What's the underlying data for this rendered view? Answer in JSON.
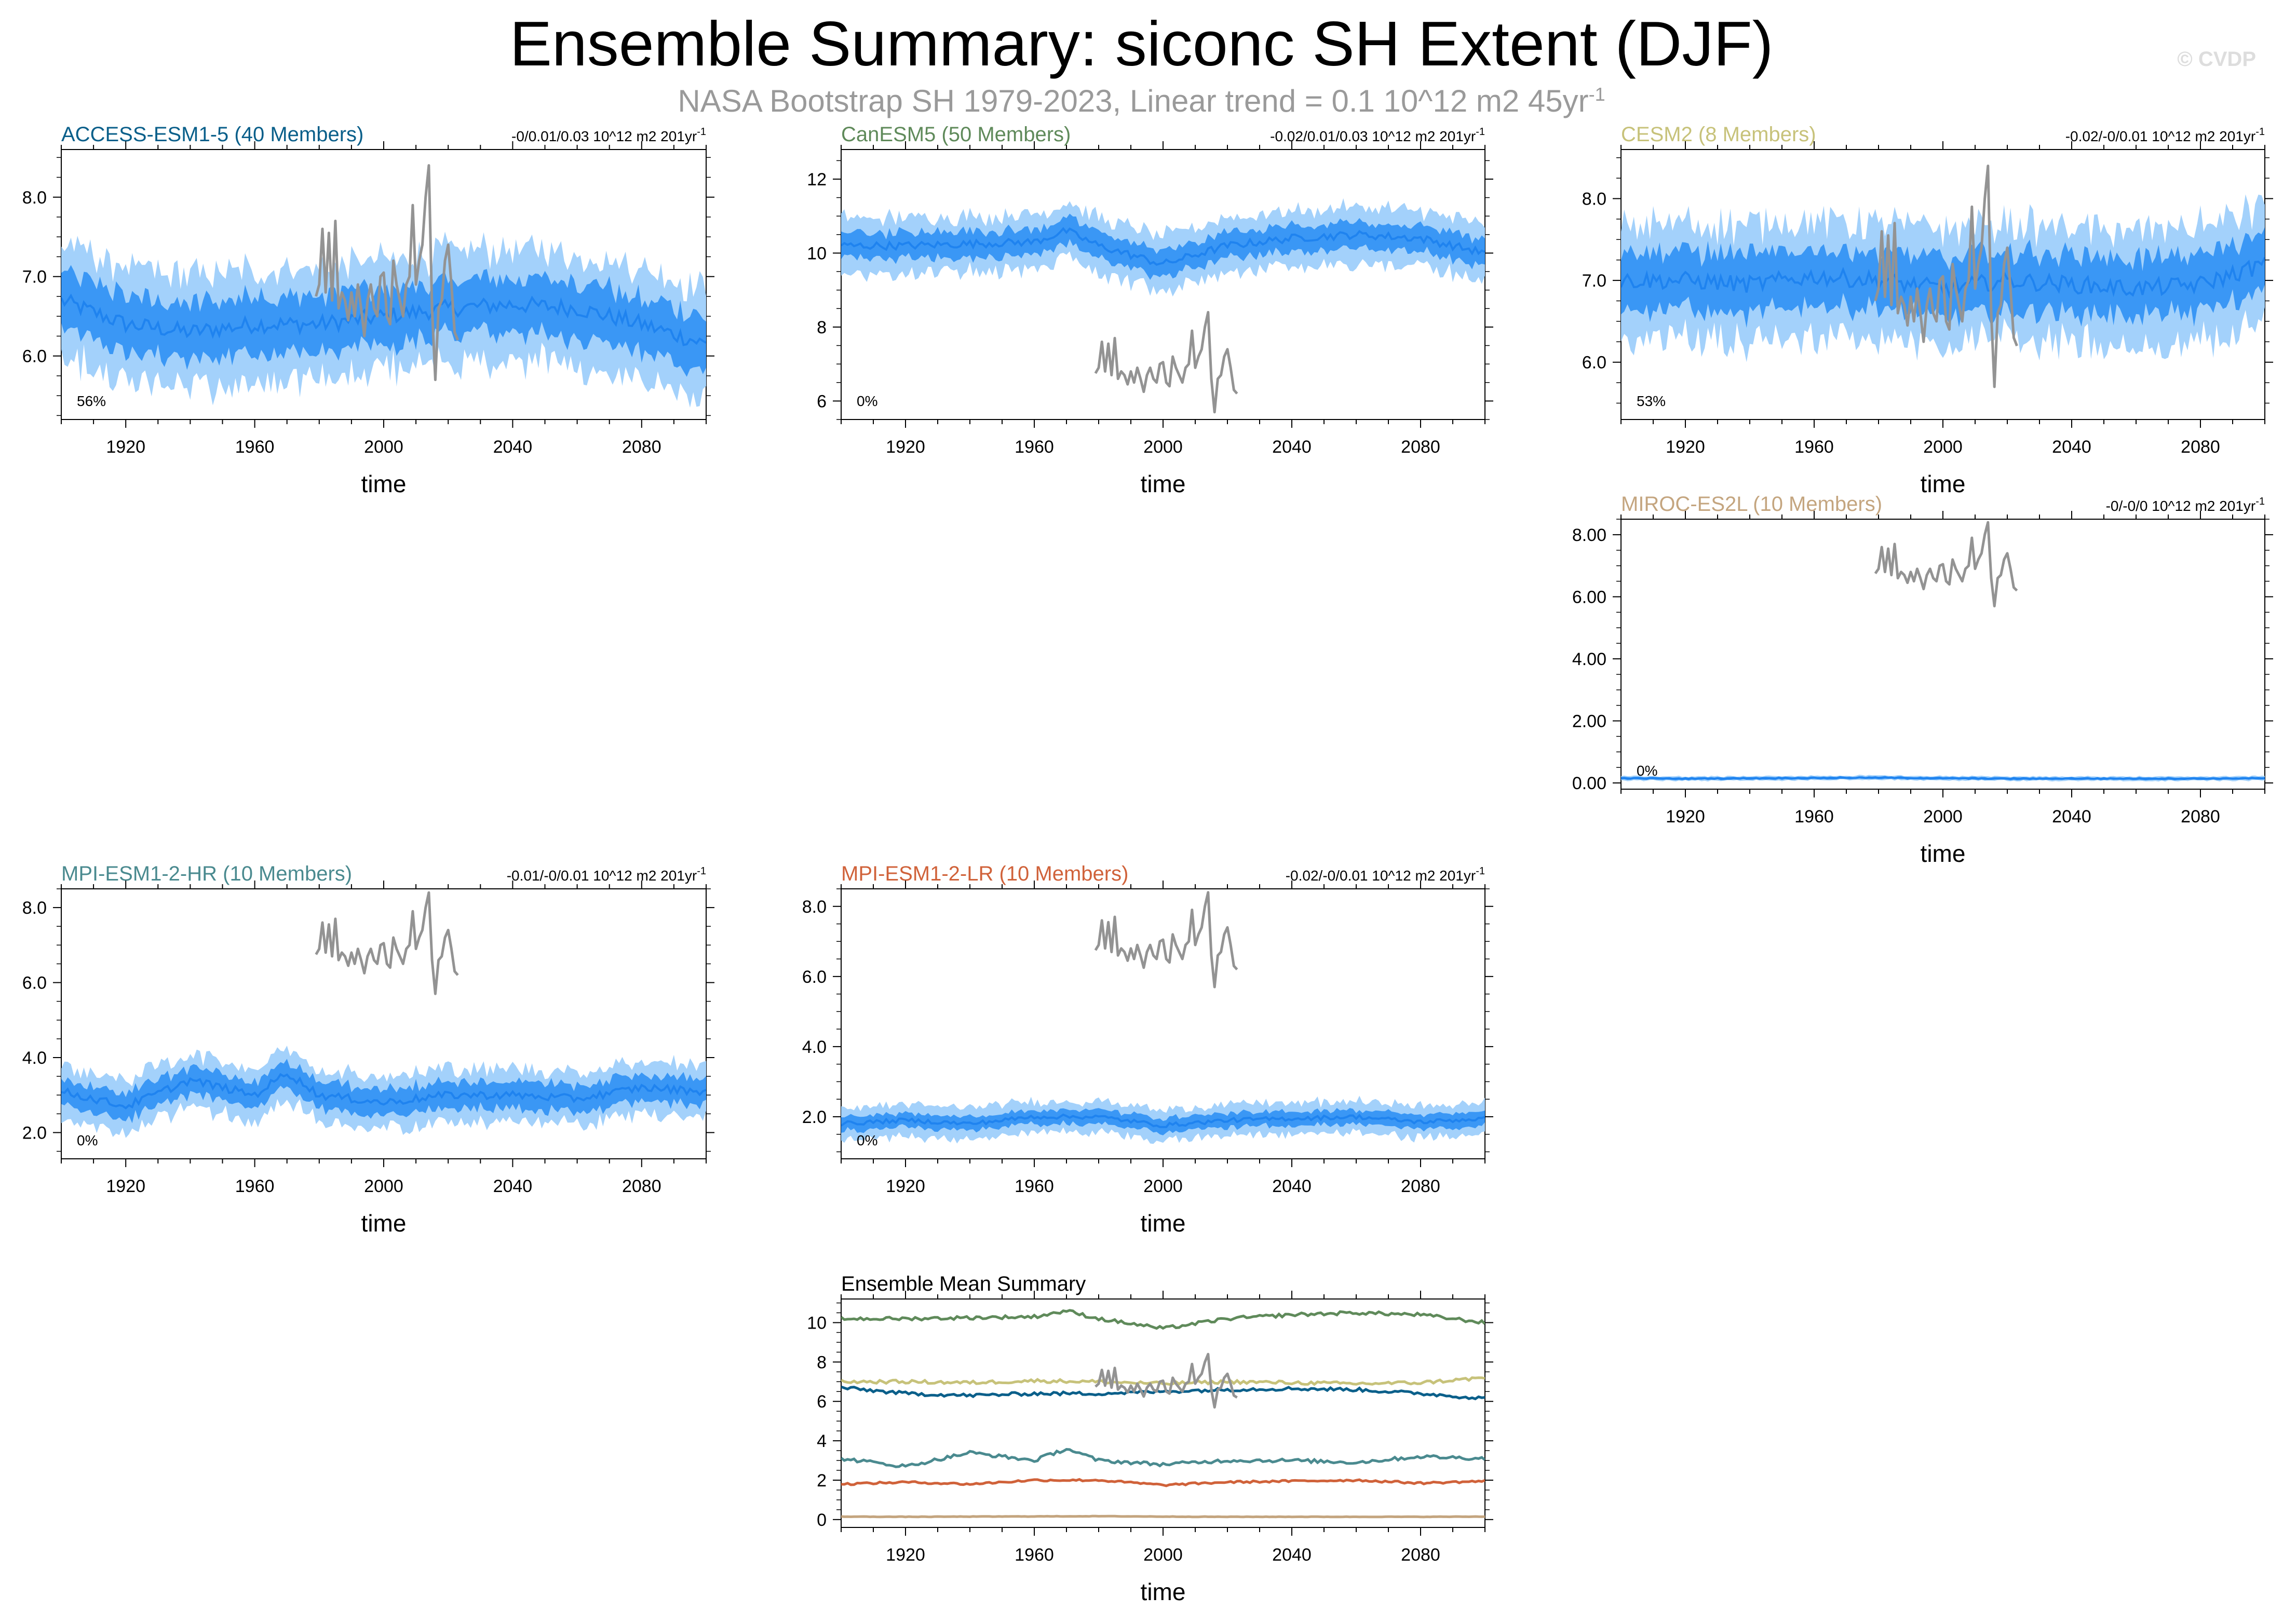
{
  "title": "Ensemble Summary: siconc SH Extent (DJF)",
  "subtitle": {
    "text": "NASA Bootstrap SH 1979-2023, Linear trend = 0.1 10^12 m2 45yr",
    "sup": "-1"
  },
  "copyright": "© CVDP",
  "colors": {
    "spread_outer": "#a3d1fb",
    "spread_inner": "#3a97f5",
    "ensemble_mean": "#1f83ef",
    "observations": "#939393"
  },
  "chart_data": [
    {
      "id": "access",
      "type": "area",
      "title": "ACCESS-ESM1-5 (40 Members)",
      "title_color": "#0a5f8a",
      "trend": "-0/0.01/0.03 10^12 m2 201yr",
      "trend_sup": "-1",
      "percent_label": "56%",
      "xlabel": "time",
      "xlim": [
        1900,
        2100
      ],
      "xticks": [
        "1920",
        "1960",
        "2000",
        "2040",
        "2080"
      ],
      "ylim": [
        5.2,
        8.6
      ],
      "yticks": [
        "6.0",
        "7.0",
        "8.0"
      ],
      "mean": {
        "years": [
          1900,
          1920,
          1940,
          1960,
          1980,
          2000,
          2020,
          2040,
          2060,
          2080,
          2100
        ],
        "values": [
          6.7,
          6.4,
          6.3,
          6.4,
          6.4,
          6.5,
          6.6,
          6.65,
          6.6,
          6.4,
          6.15
        ]
      },
      "spread_inner": 0.35,
      "spread_outer": 0.7,
      "obs_offset": 0
    },
    {
      "id": "canesm",
      "type": "area",
      "title": "CanESM5 (50 Members)",
      "title_color": "#5f8a5a",
      "trend": "-0.02/0.01/0.03 10^12 m2 201yr",
      "trend_sup": "-1",
      "percent_label": "0%",
      "xlabel": "time",
      "xlim": [
        1900,
        2100
      ],
      "xticks": [
        "1920",
        "1960",
        "2000",
        "2040",
        "2080"
      ],
      "ylim": [
        5.5,
        12.8
      ],
      "yticks": [
        "6",
        "8",
        "10",
        "12"
      ],
      "mean": {
        "years": [
          1900,
          1920,
          1940,
          1960,
          1970,
          1980,
          2000,
          2020,
          2040,
          2060,
          2080,
          2100
        ],
        "values": [
          10.2,
          10.2,
          10.25,
          10.3,
          10.6,
          10.2,
          9.7,
          10.2,
          10.4,
          10.5,
          10.4,
          10.0
        ]
      },
      "spread_inner": 0.35,
      "spread_outer": 0.75,
      "obs_offset": 0
    },
    {
      "id": "cesm2",
      "type": "area",
      "title": "CESM2 (8 Members)",
      "title_color": "#c7c27a",
      "trend": "-0.02/-0/0.01 10^12 m2 201yr",
      "trend_sup": "-1",
      "percent_label": "53%",
      "xlabel": "time",
      "xlim": [
        1900,
        2100
      ],
      "xticks": [
        "1920",
        "1960",
        "2000",
        "2040",
        "2080"
      ],
      "ylim": [
        5.3,
        8.6
      ],
      "yticks": [
        "6.0",
        "7.0",
        "8.0"
      ],
      "mean": {
        "years": [
          1900,
          1920,
          1940,
          1960,
          1980,
          2000,
          2020,
          2040,
          2060,
          2080,
          2100
        ],
        "values": [
          7.0,
          7.0,
          6.95,
          7.05,
          7.0,
          6.9,
          7.0,
          6.95,
          6.9,
          6.95,
          7.2
        ]
      },
      "spread_inner": 0.35,
      "spread_outer": 0.7,
      "obs_offset": 0
    },
    {
      "id": "miroc",
      "type": "area",
      "title": "MIROC-ES2L (10 Members)",
      "title_color": "#c4a57f",
      "trend": "-0/-0/0 10^12 m2 201yr",
      "trend_sup": "-1",
      "percent_label": "0%",
      "xlabel": "time",
      "xlim": [
        1900,
        2100
      ],
      "xticks": [
        "1920",
        "1960",
        "2000",
        "2040",
        "2080"
      ],
      "ylim": [
        -0.2,
        8.5
      ],
      "yticks": [
        "0.00",
        "2.00",
        "4.00",
        "6.00",
        "8.00"
      ],
      "mean": {
        "years": [
          1900,
          1920,
          1940,
          1960,
          1980,
          2000,
          2020,
          2040,
          2060,
          2080,
          2100
        ],
        "values": [
          0.15,
          0.14,
          0.15,
          0.16,
          0.17,
          0.15,
          0.14,
          0.14,
          0.14,
          0.14,
          0.15
        ]
      },
      "spread_inner": 0.04,
      "spread_outer": 0.07,
      "obs_offset": 0
    },
    {
      "id": "mpihr",
      "type": "area",
      "title": "MPI-ESM1-2-HR (10 Members)",
      "title_color": "#4a8a8f",
      "trend": "-0.01/-0/0.01 10^12 m2 201yr",
      "trend_sup": "-1",
      "percent_label": "0%",
      "xlabel": "time",
      "xlim": [
        1900,
        2100
      ],
      "xticks": [
        "1920",
        "1960",
        "2000",
        "2040",
        "2080"
      ],
      "ylim": [
        1.3,
        8.5
      ],
      "yticks": [
        "2.0",
        "4.0",
        "6.0",
        "8.0"
      ],
      "mean": {
        "years": [
          1900,
          1910,
          1920,
          1940,
          1960,
          1970,
          1980,
          2000,
          2020,
          2040,
          2060,
          2080,
          2100
        ],
        "values": [
          3.1,
          2.9,
          2.7,
          3.4,
          3.0,
          3.6,
          3.0,
          2.8,
          3.0,
          3.0,
          2.9,
          3.2,
          3.1
        ]
      },
      "spread_inner": 0.35,
      "spread_outer": 0.7,
      "obs_offset": 0
    },
    {
      "id": "mpilr",
      "type": "area",
      "title": "MPI-ESM1-2-LR (10 Members)",
      "title_color": "#d0623a",
      "trend": "-0.02/-0/0.01 10^12 m2 201yr",
      "trend_sup": "-1",
      "percent_label": "0%",
      "xlabel": "time",
      "xlim": [
        1900,
        2100
      ],
      "xticks": [
        "1920",
        "1960",
        "2000",
        "2040",
        "2080"
      ],
      "ylim": [
        0.8,
        8.5
      ],
      "yticks": [
        "2.0",
        "4.0",
        "6.0",
        "8.0"
      ],
      "mean": {
        "years": [
          1900,
          1920,
          1940,
          1960,
          1980,
          2000,
          2020,
          2040,
          2060,
          2080,
          2100
        ],
        "values": [
          1.8,
          1.9,
          1.8,
          2.0,
          2.0,
          1.75,
          1.9,
          1.95,
          2.0,
          1.85,
          1.95
        ]
      },
      "spread_inner": 0.2,
      "spread_outer": 0.45,
      "obs_offset": 0
    },
    {
      "id": "summary",
      "type": "line",
      "title": "Ensemble Mean Summary",
      "title_color": "#000000",
      "xlabel": "time",
      "xlim": [
        1900,
        2100
      ],
      "xticks": [
        "1920",
        "1960",
        "2000",
        "2040",
        "2080"
      ],
      "ylim": [
        -0.4,
        11.2
      ],
      "yticks": [
        "0",
        "2",
        "4",
        "6",
        "8",
        "10"
      ],
      "series": [
        {
          "name": "CanESM5",
          "color": "#5f8a5a"
        },
        {
          "name": "CESM2",
          "color": "#c7c27a"
        },
        {
          "name": "ACCESS-ESM1-5",
          "color": "#0a5f8a"
        },
        {
          "name": "MPI-ESM1-2-HR",
          "color": "#4a8a8f"
        },
        {
          "name": "MPI-ESM1-2-LR",
          "color": "#d0623a"
        },
        {
          "name": "MIROC-ES2L",
          "color": "#c4a57f"
        }
      ],
      "obs_offset": 0
    }
  ],
  "observations": {
    "name": "NASA Bootstrap SH",
    "years": [
      1979,
      1980,
      1981,
      1982,
      1983,
      1984,
      1985,
      1986,
      1987,
      1988,
      1989,
      1990,
      1991,
      1992,
      1993,
      1994,
      1995,
      1996,
      1997,
      1998,
      1999,
      2000,
      2001,
      2002,
      2003,
      2004,
      2005,
      2006,
      2007,
      2008,
      2009,
      2010,
      2011,
      2012,
      2013,
      2014,
      2015,
      2016,
      2017,
      2018,
      2019,
      2020,
      2021,
      2022,
      2023
    ],
    "values": [
      6.75,
      6.9,
      7.6,
      6.8,
      7.55,
      6.7,
      7.7,
      6.6,
      6.8,
      6.7,
      6.45,
      6.8,
      6.5,
      6.9,
      6.6,
      6.25,
      6.7,
      6.9,
      6.6,
      6.5,
      7.0,
      7.05,
      6.5,
      6.4,
      7.2,
      6.9,
      6.7,
      6.5,
      6.9,
      7.0,
      7.9,
      6.9,
      7.2,
      7.4,
      8.0,
      8.4,
      6.6,
      5.7,
      6.6,
      6.7,
      7.2,
      7.4,
      6.9,
      6.3,
      6.2
    ]
  }
}
